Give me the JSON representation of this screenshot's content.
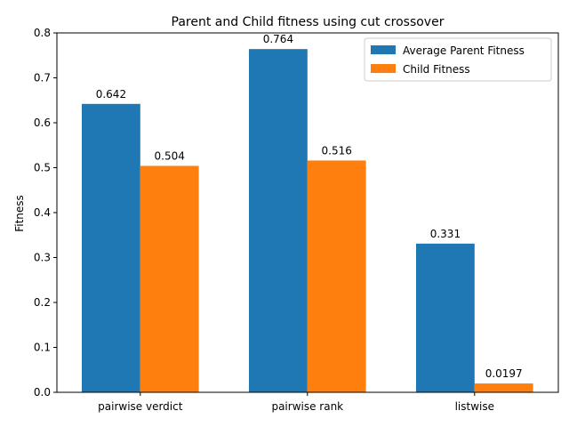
{
  "chart_data": {
    "type": "bar",
    "title": "Parent and Child fitness using cut crossover",
    "xlabel": "",
    "ylabel": "Fitness",
    "ylim": [
      0,
      0.8
    ],
    "yticks": [
      "0.0",
      "0.1",
      "0.2",
      "0.3",
      "0.4",
      "0.5",
      "0.6",
      "0.7",
      "0.8"
    ],
    "categories": [
      "pairwise verdict",
      "pairwise rank",
      "listwise"
    ],
    "series": [
      {
        "name": "Average Parent Fitness",
        "color": "#1f77b4",
        "values": [
          0.642,
          0.764,
          0.331
        ],
        "labels": [
          "0.642",
          "0.764",
          "0.331"
        ]
      },
      {
        "name": "Child Fitness",
        "color": "#ff7f0e",
        "values": [
          0.504,
          0.516,
          0.0197
        ],
        "labels": [
          "0.504",
          "0.516",
          "0.0197"
        ]
      }
    ],
    "legend_position": "top-right",
    "grid": false
  }
}
